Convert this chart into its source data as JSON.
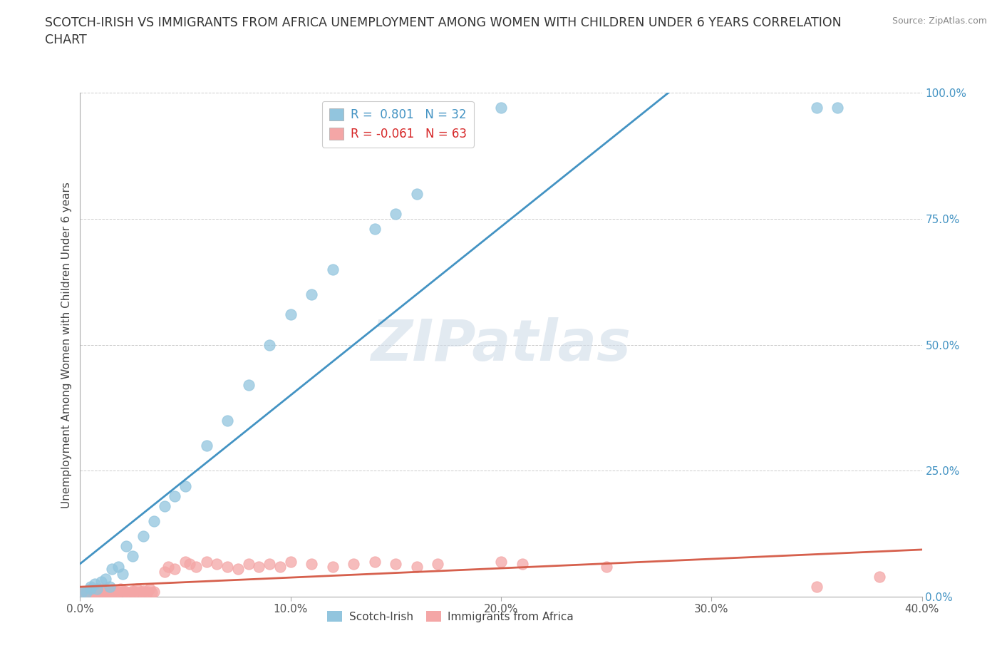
{
  "title": "SCOTCH-IRISH VS IMMIGRANTS FROM AFRICA UNEMPLOYMENT AMONG WOMEN WITH CHILDREN UNDER 6 YEARS CORRELATION\nCHART",
  "source": "Source: ZipAtlas.com",
  "ylabel": "Unemployment Among Women with Children Under 6 years",
  "yticks": [
    "0.0%",
    "25.0%",
    "50.0%",
    "75.0%",
    "100.0%"
  ],
  "ytick_vals": [
    0.0,
    0.25,
    0.5,
    0.75,
    1.0
  ],
  "xticks": [
    0.0,
    0.1,
    0.2,
    0.3,
    0.4
  ],
  "xtick_labels": [
    "0.0%",
    "10.0%",
    "20.0%",
    "30.0%",
    "40.0%"
  ],
  "xlim": [
    0,
    0.4
  ],
  "ylim": [
    0,
    1.0
  ],
  "scotch_irish_R": 0.801,
  "scotch_irish_N": 32,
  "africa_R": -0.061,
  "africa_N": 63,
  "scotch_irish_color": "#92c5de",
  "africa_color": "#f4a6a6",
  "regression_scotch_color": "#4393c3",
  "regression_africa_color": "#d6604d",
  "watermark_color": "#d0dce8",
  "scotch_irish_x": [
    0.001,
    0.003,
    0.005,
    0.005,
    0.007,
    0.008,
    0.01,
    0.012,
    0.014,
    0.015,
    0.018,
    0.02,
    0.022,
    0.025,
    0.03,
    0.035,
    0.04,
    0.045,
    0.05,
    0.06,
    0.07,
    0.08,
    0.09,
    0.1,
    0.11,
    0.12,
    0.14,
    0.15,
    0.16,
    0.2,
    0.35,
    0.36
  ],
  "scotch_irish_y": [
    0.01,
    0.008,
    0.015,
    0.02,
    0.025,
    0.015,
    0.03,
    0.035,
    0.02,
    0.055,
    0.06,
    0.045,
    0.1,
    0.08,
    0.12,
    0.15,
    0.18,
    0.2,
    0.22,
    0.3,
    0.35,
    0.42,
    0.5,
    0.56,
    0.6,
    0.65,
    0.73,
    0.76,
    0.8,
    0.97,
    0.97,
    0.97
  ],
  "africa_x": [
    0.001,
    0.002,
    0.003,
    0.004,
    0.005,
    0.006,
    0.007,
    0.008,
    0.009,
    0.01,
    0.01,
    0.011,
    0.012,
    0.013,
    0.014,
    0.015,
    0.016,
    0.017,
    0.018,
    0.019,
    0.02,
    0.021,
    0.022,
    0.023,
    0.024,
    0.025,
    0.026,
    0.027,
    0.028,
    0.029,
    0.03,
    0.031,
    0.032,
    0.033,
    0.034,
    0.035,
    0.04,
    0.042,
    0.045,
    0.05,
    0.052,
    0.055,
    0.06,
    0.065,
    0.07,
    0.075,
    0.08,
    0.085,
    0.09,
    0.095,
    0.1,
    0.11,
    0.12,
    0.13,
    0.14,
    0.15,
    0.16,
    0.17,
    0.2,
    0.21,
    0.25,
    0.35,
    0.38
  ],
  "africa_y": [
    0.005,
    0.01,
    0.005,
    0.008,
    0.01,
    0.005,
    0.008,
    0.012,
    0.005,
    0.01,
    0.015,
    0.008,
    0.012,
    0.005,
    0.01,
    0.008,
    0.012,
    0.005,
    0.01,
    0.015,
    0.008,
    0.012,
    0.01,
    0.005,
    0.008,
    0.012,
    0.01,
    0.015,
    0.008,
    0.01,
    0.012,
    0.008,
    0.01,
    0.015,
    0.008,
    0.01,
    0.05,
    0.06,
    0.055,
    0.07,
    0.065,
    0.06,
    0.07,
    0.065,
    0.06,
    0.055,
    0.065,
    0.06,
    0.065,
    0.06,
    0.07,
    0.065,
    0.06,
    0.065,
    0.07,
    0.065,
    0.06,
    0.065,
    0.07,
    0.065,
    0.06,
    0.02,
    0.04
  ]
}
